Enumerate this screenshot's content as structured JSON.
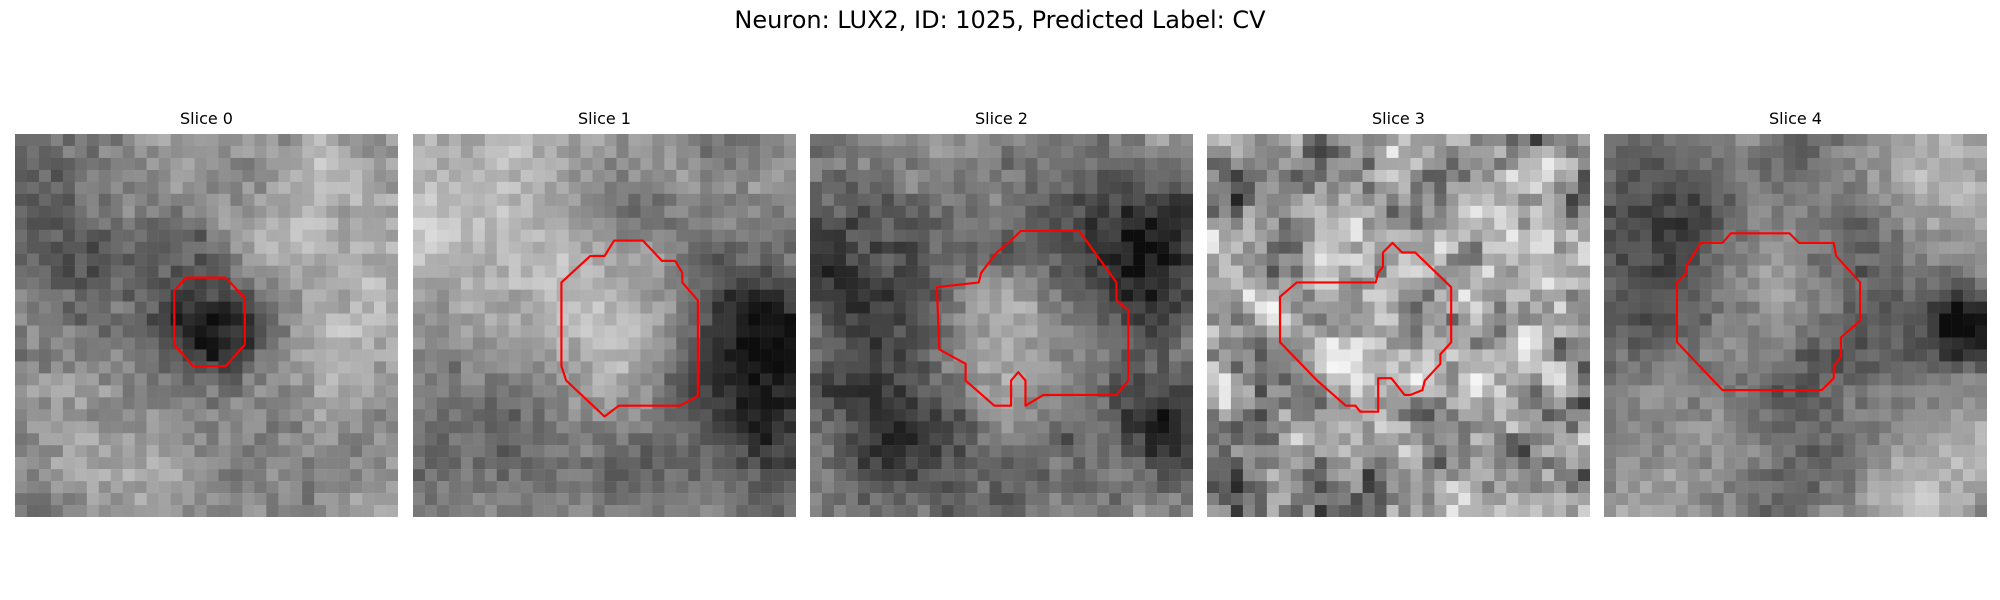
{
  "figure": {
    "title": "Neuron: LUX2, ID: 1025, Predicted Label: CV"
  },
  "grid_size": 32,
  "contour_color": "#ff0000",
  "panels": [
    {
      "title": "Slice 0",
      "seed": 11,
      "noise": 0.35,
      "blur": 2,
      "blobs": [
        [
          16.5,
          16,
          3.5,
          -0.45
        ],
        [
          6,
          10,
          6,
          -0.18
        ],
        [
          26,
          8,
          5,
          0.2
        ],
        [
          26,
          18,
          3,
          0.15
        ],
        [
          5,
          28,
          6,
          0.1
        ]
      ],
      "contour": [
        [
          14.3,
          12
        ],
        [
          17.6,
          12
        ],
        [
          19.2,
          13.7
        ],
        [
          19.2,
          17.6
        ],
        [
          17.6,
          19.4
        ],
        [
          14.9,
          19.4
        ],
        [
          13.3,
          17.6
        ],
        [
          13.3,
          13.1
        ]
      ]
    },
    {
      "title": "Slice 1",
      "seed": 23,
      "noise": 0.3,
      "blur": 2,
      "blobs": [
        [
          16.5,
          17,
          5,
          0.45
        ],
        [
          16.5,
          17,
          8.5,
          -0.35
        ],
        [
          8,
          10,
          8,
          0.25
        ],
        [
          29,
          17,
          4,
          -0.4
        ],
        [
          30,
          25,
          3,
          -0.3
        ],
        [
          4,
          25,
          5,
          -0.1
        ]
      ],
      "contour": [
        [
          16.8,
          8.9
        ],
        [
          19.2,
          8.9
        ],
        [
          20.8,
          10.6
        ],
        [
          21.9,
          10.6
        ],
        [
          22.5,
          11.6
        ],
        [
          22.5,
          12.4
        ],
        [
          23.8,
          13.9
        ],
        [
          23.8,
          21.9
        ],
        [
          22.3,
          22.7
        ],
        [
          17.2,
          22.7
        ],
        [
          16,
          23.6
        ],
        [
          12.8,
          20.6
        ],
        [
          12.4,
          19.4
        ],
        [
          12.4,
          12.4
        ],
        [
          14.8,
          10.2
        ],
        [
          16,
          10.2
        ]
      ]
    },
    {
      "title": "Slice 2",
      "seed": 37,
      "noise": 0.35,
      "blur": 1.5,
      "blobs": [
        [
          16,
          18,
          5,
          0.5
        ],
        [
          16,
          18,
          8.5,
          -0.35
        ],
        [
          28,
          9,
          4,
          -0.45
        ],
        [
          30,
          24,
          3,
          -0.35
        ],
        [
          6,
          23,
          5,
          -0.25
        ],
        [
          3,
          11,
          4,
          -0.2
        ]
      ],
      "contour": [
        [
          16.8,
          8.9
        ],
        [
          17.6,
          8.1
        ],
        [
          22.5,
          8.1
        ],
        [
          25.6,
          12.4
        ],
        [
          25.6,
          13.9
        ],
        [
          26.6,
          14.7
        ],
        [
          26.6,
          20.6
        ],
        [
          25.6,
          21.8
        ],
        [
          19.5,
          21.8
        ],
        [
          18,
          22.7
        ],
        [
          18,
          20.6
        ],
        [
          17.4,
          19.9
        ],
        [
          16.8,
          20.6
        ],
        [
          16.8,
          22.7
        ],
        [
          15.4,
          22.7
        ],
        [
          13,
          20.6
        ],
        [
          13,
          19.2
        ],
        [
          10.8,
          18
        ],
        [
          10.6,
          12.8
        ],
        [
          14.1,
          12.4
        ],
        [
          14.3,
          11.6
        ],
        [
          15.6,
          9.9
        ]
      ]
    },
    {
      "title": "Slice 3",
      "seed": 49,
      "noise": 0.55,
      "blur": 0.5,
      "blobs": [
        [
          15,
          17.5,
          6,
          0.15
        ],
        [
          28,
          4,
          4,
          0.15
        ],
        [
          4,
          20,
          5,
          -0.05
        ]
      ],
      "contour": [
        [
          15.5,
          9.1
        ],
        [
          16.3,
          9.9
        ],
        [
          17.4,
          9.9
        ],
        [
          20.4,
          12.8
        ],
        [
          20.4,
          17.4
        ],
        [
          19.5,
          18.4
        ],
        [
          19.5,
          19.2
        ],
        [
          18.2,
          20.6
        ],
        [
          18,
          21.4
        ],
        [
          17,
          21.8
        ],
        [
          16.5,
          21.8
        ],
        [
          15.4,
          20.4
        ],
        [
          14.3,
          20.4
        ],
        [
          14.3,
          23.2
        ],
        [
          12.8,
          23.2
        ],
        [
          12.4,
          22.7
        ],
        [
          11.6,
          22.7
        ],
        [
          9.2,
          20.6
        ],
        [
          6.1,
          17.4
        ],
        [
          6.1,
          13.6
        ],
        [
          7.5,
          12.4
        ],
        [
          14.1,
          12.4
        ],
        [
          14.3,
          11.6
        ],
        [
          14.7,
          11.1
        ],
        [
          14.7,
          9.9
        ]
      ]
    },
    {
      "title": "Slice 4",
      "seed": 61,
      "noise": 0.3,
      "blur": 1.5,
      "blobs": [
        [
          13.5,
          14,
          5,
          0.55
        ],
        [
          13.5,
          15,
          8,
          -0.5
        ],
        [
          30,
          16,
          2.5,
          -0.5
        ],
        [
          3,
          8,
          5,
          -0.2
        ],
        [
          29,
          4,
          5,
          0.15
        ],
        [
          6,
          27,
          6,
          0.1
        ],
        [
          27,
          28,
          5,
          0.15
        ]
      ],
      "contour": [
        [
          10.6,
          8.3
        ],
        [
          15.5,
          8.3
        ],
        [
          16.3,
          9.1
        ],
        [
          19.2,
          9.1
        ],
        [
          19.4,
          10.2
        ],
        [
          21.4,
          12.4
        ],
        [
          21.4,
          15.6
        ],
        [
          19.8,
          17
        ],
        [
          19.8,
          18.6
        ],
        [
          19.2,
          19.4
        ],
        [
          19.2,
          20.4
        ],
        [
          18.2,
          21.4
        ],
        [
          9.9,
          21.4
        ],
        [
          6.1,
          17.4
        ],
        [
          6.1,
          12.4
        ],
        [
          6.9,
          11.6
        ],
        [
          6.9,
          11
        ],
        [
          8.1,
          9.1
        ],
        [
          9.9,
          9.1
        ]
      ]
    }
  ]
}
